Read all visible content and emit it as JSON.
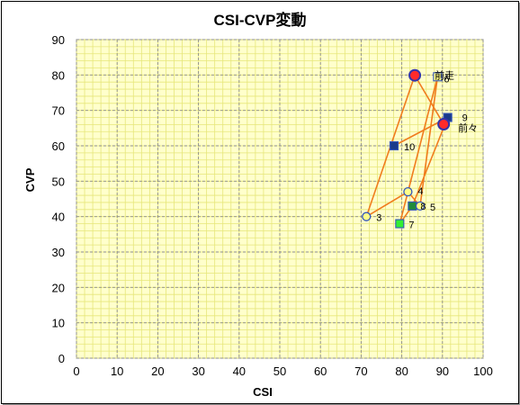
{
  "chart_data": {
    "type": "scatter",
    "title": "CSI-CVP変動",
    "xlabel": "CSI",
    "ylabel": "CVP",
    "xlim": [
      0,
      100
    ],
    "ylim": [
      0,
      90
    ],
    "xticks": [
      0,
      10,
      20,
      30,
      40,
      50,
      60,
      70,
      80,
      90,
      100
    ],
    "yticks": [
      0,
      10,
      20,
      30,
      40,
      50,
      60,
      70,
      80,
      90
    ],
    "grid": true,
    "line_color": "#f07c1e",
    "plot_bg": "#ffffcc",
    "points": [
      {
        "label": "前々",
        "x": 90.3,
        "y": 66.1,
        "marker": "circle",
        "fill": "#ff2a2a",
        "stroke": "#3333aa",
        "size": 12,
        "label_dx": 16,
        "label_dy": 8
      },
      {
        "label": "前走",
        "x": 83.2,
        "y": 79.9,
        "marker": "circle",
        "fill": "#ff2a2a",
        "stroke": "#3333aa",
        "size": 12,
        "label_dx": 22,
        "label_dy": 4
      },
      {
        "label": "3",
        "x": 71.3,
        "y": 40.0,
        "marker": "circle",
        "fill": "#ffff88",
        "stroke": "#3355bb",
        "size": 9,
        "label_dx": 11,
        "label_dy": 5
      },
      {
        "label": "4",
        "x": 81.5,
        "y": 47.0,
        "marker": "circle",
        "fill": "#ffff88",
        "stroke": "#3355bb",
        "size": 9,
        "label_dx": 11,
        "label_dy": 3
      },
      {
        "label": "5",
        "x": 84.5,
        "y": 43.0,
        "marker": "circle",
        "fill": "#ffff88",
        "stroke": "#3355bb",
        "size": 9,
        "label_dx": 11,
        "label_dy": 5
      },
      {
        "label": "6",
        "x": 88.8,
        "y": 79.5,
        "marker": "square",
        "fill": "#ffff88",
        "stroke": "#3355bb",
        "size": 9,
        "label_dx": 7,
        "label_dy": 6
      },
      {
        "label": "7",
        "x": 79.5,
        "y": 38.0,
        "marker": "square",
        "fill": "#33ee33",
        "stroke": "#3355bb",
        "size": 9,
        "label_dx": 10,
        "label_dy": 5
      },
      {
        "label": "8",
        "x": 82.6,
        "y": 43.0,
        "marker": "square",
        "fill": "#1e8a3a",
        "stroke": "#3355bb",
        "size": 9,
        "label_dx": 9,
        "label_dy": 4
      },
      {
        "label": "9",
        "x": 91.3,
        "y": 68.0,
        "marker": "square",
        "fill": "#1a3a8a",
        "stroke": "#3355bb",
        "size": 9,
        "label_dx": 16,
        "label_dy": 4
      },
      {
        "label": "10",
        "x": 78.1,
        "y": 60.0,
        "marker": "square",
        "fill": "#1a3a8a",
        "stroke": "#3355bb",
        "size": 9,
        "label_dx": 11,
        "label_dy": 5
      }
    ],
    "path_order": [
      "前々",
      "前走",
      "3",
      "4",
      "5",
      "6",
      "7",
      "8",
      "9",
      "10"
    ]
  }
}
